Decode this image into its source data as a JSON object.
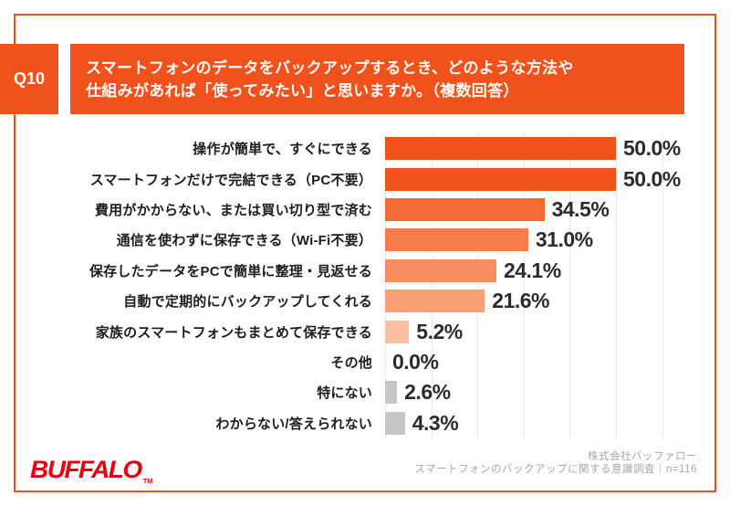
{
  "header": {
    "question_number": "Q10",
    "title_lines": [
      "スマートフォンのデータをバックアップするとき、どのような方法や",
      "仕組みがあれば「使ってみたい」と思いますか。（複数回答）"
    ]
  },
  "chart_data": {
    "type": "bar",
    "orientation": "horizontal",
    "title": "",
    "xlabel": "",
    "ylabel": "",
    "categories": [
      "操作が簡単で、すぐにできる",
      "スマートフォンだけで完結できる（PC不要）",
      "費用がかからない、または買い切り型で済む",
      "通信を使わずに保存できる（Wi-Fi不要）",
      "保存したデータをPCで簡単に整理・見返せる",
      "自動で定期的にバックアップしてくれる",
      "家族のスマートフォンもまとめて保存できる",
      "その他",
      "特にない",
      "わからない/答えられない"
    ],
    "values": [
      50.0,
      50.0,
      34.5,
      31.0,
      24.1,
      21.6,
      5.2,
      0.0,
      2.6,
      4.3
    ],
    "value_labels": [
      "50.0%",
      "50.0%",
      "34.5%",
      "31.0%",
      "24.1%",
      "21.6%",
      "5.2%",
      "0.0%",
      "2.6%",
      "4.3%"
    ],
    "bar_colors": [
      "#F1511B",
      "#F1511B",
      "#F46B36",
      "#F67C4B",
      "#F78D63",
      "#F9A078",
      "#FBBEA0",
      "#C6C6C6",
      "#C6C6C6",
      "#C6C6C6"
    ],
    "xlim": [
      0,
      60
    ],
    "gridline_percent_step": 10,
    "grid": true,
    "legend_position": "none"
  },
  "footer": {
    "logo_text": "BUFFALO",
    "logo_tm": "TM",
    "logo_color": "#E60012",
    "source_lines": [
      "株式会社バッファロー",
      "スマートフォンのバックアップに関する意識調査｜n=116"
    ]
  },
  "colors": {
    "accent_orange": "#F1511B",
    "bar_gray": "#C6C6C6",
    "grid_line": "#E9E9E9",
    "value_text": "#2B2B2B",
    "source_text": "#A7A7A7"
  }
}
